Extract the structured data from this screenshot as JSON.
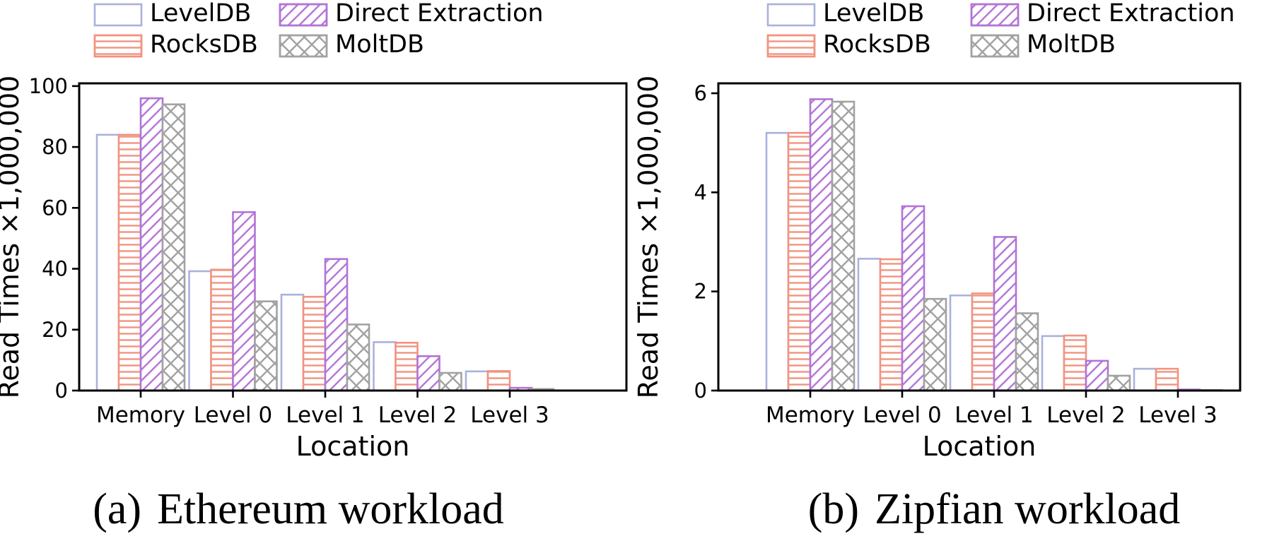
{
  "figure": {
    "panels": [
      {
        "caption_prefix": "(a)",
        "caption_text": "Ethereum workload"
      },
      {
        "caption_prefix": "(b)",
        "caption_text": "Zipfian workload"
      }
    ]
  },
  "colors": {
    "leveldb_edge": "#a9b2dd",
    "rocksdb_edge": "#f2937f",
    "direct_extraction_edge": "#b273d6",
    "moltdb_edge": "#a2a2a2",
    "axis": "#000000",
    "background": "#ffffff"
  },
  "chart_data": [
    {
      "type": "bar",
      "title": "(a) Ethereum workload",
      "xlabel": "Location",
      "ylabel": "Read Times ×1,000,000",
      "categories": [
        "Memory",
        "Level 0",
        "Level 1",
        "Level 2",
        "Level 3"
      ],
      "series": [
        {
          "name": "LevelDB",
          "hatch": "none",
          "color": "#a9b2dd",
          "values": [
            84.0,
            39.2,
            31.5,
            15.9,
            6.3
          ]
        },
        {
          "name": "RocksDB",
          "hatch": "horizontal",
          "color": "#f2937f",
          "values": [
            84.0,
            39.7,
            30.8,
            15.7,
            6.4
          ]
        },
        {
          "name": "Direct Extraction",
          "hatch": "diagonal",
          "color": "#b273d6",
          "values": [
            96.0,
            58.6,
            43.2,
            11.3,
            0.9
          ]
        },
        {
          "name": "MoltDB",
          "hatch": "cross",
          "color": "#a2a2a2",
          "values": [
            94.0,
            29.3,
            21.7,
            5.8,
            0.5
          ]
        }
      ],
      "ylim": [
        0,
        100.9
      ],
      "yticks": [
        0,
        20,
        40,
        60,
        80,
        100
      ],
      "legend_position": "top",
      "grid": false
    },
    {
      "type": "bar",
      "title": "(b) Zipfian workload",
      "xlabel": "Location",
      "ylabel": "Read Times ×1,000,000",
      "categories": [
        "Memory",
        "Level 0",
        "Level 1",
        "Level 2",
        "Level 3"
      ],
      "series": [
        {
          "name": "LevelDB",
          "hatch": "none",
          "color": "#a9b2dd",
          "values": [
            5.2,
            2.66,
            1.92,
            1.1,
            0.44
          ]
        },
        {
          "name": "RocksDB",
          "hatch": "horizontal",
          "color": "#f2937f",
          "values": [
            5.2,
            2.65,
            1.96,
            1.11,
            0.44
          ]
        },
        {
          "name": "Direct Extraction",
          "hatch": "diagonal",
          "color": "#b273d6",
          "values": [
            5.88,
            3.72,
            3.1,
            0.6,
            0.02
          ]
        },
        {
          "name": "MoltDB",
          "hatch": "cross",
          "color": "#a2a2a2",
          "values": [
            5.83,
            1.85,
            1.56,
            0.3,
            0.01
          ]
        }
      ],
      "ylim": [
        0,
        6.2
      ],
      "yticks": [
        0,
        2,
        4,
        6
      ],
      "legend_position": "top",
      "grid": false
    }
  ]
}
